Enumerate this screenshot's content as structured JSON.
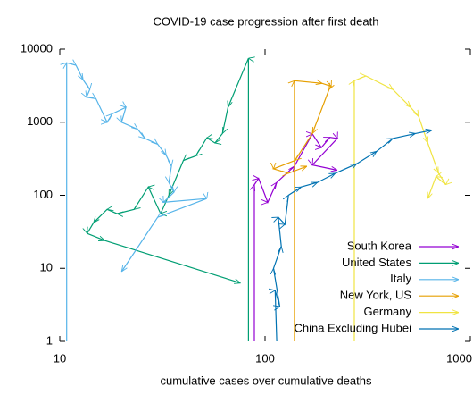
{
  "chart_data": {
    "type": "vectors",
    "title": "COVID-19 case progression after first death",
    "x_label": "cumulative cases over cumulative deaths",
    "xscale": "log",
    "yscale": "log",
    "xlim": [
      10,
      1000
    ],
    "ylim": [
      1,
      10000
    ],
    "xticks": [
      10,
      100,
      1000
    ],
    "yticks": [
      1,
      10,
      100,
      1000,
      10000
    ],
    "legend": "lower right",
    "series": [
      {
        "name": "South Korea",
        "color": "#9400d3",
        "x": [
          88.7,
          88.7,
          93,
          103,
          114,
          139,
          170,
          188,
          207,
          225,
          170,
          225
        ],
        "values": [
          1,
          140,
          170,
          80,
          150,
          250,
          690,
          450,
          620,
          600,
          260,
          220
        ]
      },
      {
        "name": "United States",
        "color": "#009e73",
        "x": [
          83,
          83,
          66,
          62,
          57,
          52,
          46,
          40,
          34,
          31,
          27,
          23,
          19,
          17,
          14.6,
          13.6,
          16.6,
          76
        ],
        "values": [
          1,
          7500,
          1600,
          700,
          520,
          610,
          345,
          300,
          100,
          56,
          130,
          64,
          56,
          64,
          42,
          30,
          24,
          6.3
        ]
      },
      {
        "name": "Italy",
        "color": "#56b4e9",
        "x": [
          10.8,
          10.8,
          12,
          13,
          14,
          13.5,
          15,
          17,
          18,
          21,
          20,
          24,
          26,
          30,
          33,
          35,
          34,
          36,
          32,
          52,
          30,
          20
        ],
        "values": [
          1,
          6500,
          6000,
          3800,
          2800,
          2200,
          2100,
          1000,
          1300,
          1600,
          1000,
          800,
          600,
          500,
          350,
          250,
          150,
          110,
          80,
          90,
          50,
          9
        ]
      },
      {
        "name": "New York, US",
        "color": "#e69f00",
        "x": [
          139,
          139,
          190,
          210,
          205,
          170,
          140,
          110,
          130,
          160
        ],
        "values": [
          1,
          3700,
          3400,
          3100,
          2800,
          700,
          300,
          230,
          200,
          250
        ]
      },
      {
        "name": "Germany",
        "color": "#f0e442",
        "x": [
          272,
          272,
          310,
          420,
          512,
          560,
          620,
          700,
          760,
          680,
          620
        ],
        "values": [
          1,
          3700,
          4300,
          2800,
          1600,
          1200,
          520,
          200,
          140,
          180,
          90
        ]
      },
      {
        "name": "China Excluding Hubei",
        "color": "#0072b2",
        "x": [
          114,
          112,
          118,
          110,
          120,
          116,
          125,
          130,
          150,
          180,
          220,
          280,
          350,
          420,
          540,
          650
        ],
        "values": [
          1,
          5,
          3,
          10,
          20,
          50,
          40,
          100,
          130,
          150,
          200,
          270,
          400,
          600,
          700,
          780
        ]
      }
    ]
  }
}
